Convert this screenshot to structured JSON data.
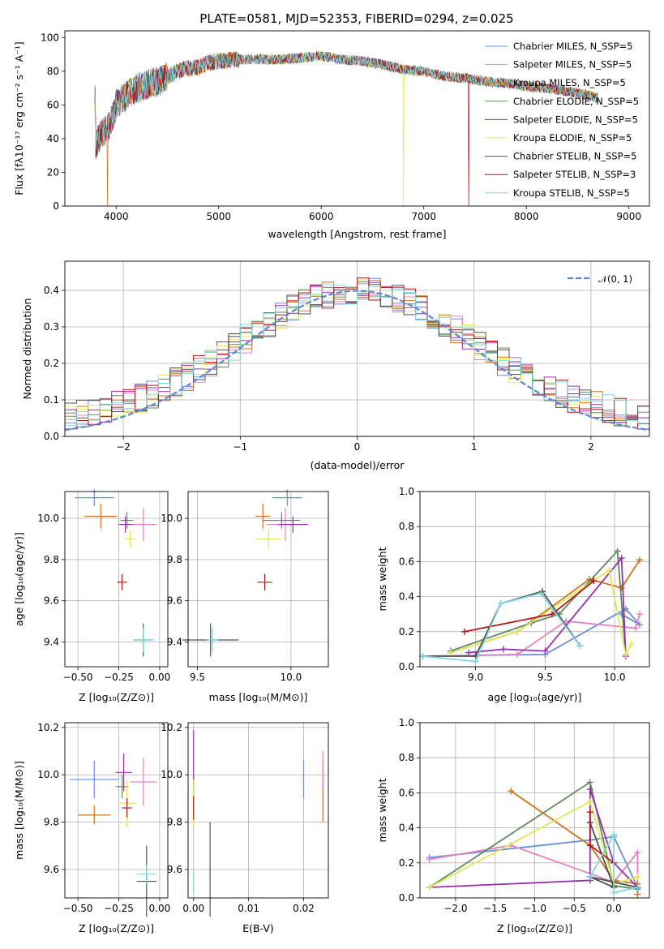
{
  "chart_data": [
    {
      "id": "spectrum",
      "type": "line",
      "title": "PLATE=0581, MJD=52353, FIBERID=0294, z=0.025",
      "xlabel": "wavelength [Angstrom, rest frame]",
      "ylabel": "Flux [fλ10⁻¹⁷ erg cm⁻² s⁻¹ A⁻¹]",
      "xlim": [
        3500,
        9200
      ],
      "ylim": [
        0,
        104
      ],
      "xticks": [
        "4000",
        "5000",
        "6000",
        "7000",
        "8000",
        "9000"
      ],
      "yticks": [
        "0",
        "20",
        "40",
        "60",
        "80",
        "100"
      ],
      "legend_position": "top-right",
      "continuum": {
        "x": [
          3800,
          3850,
          3900,
          3950,
          4000,
          4100,
          4200,
          4300,
          4400,
          4500,
          4600,
          4700,
          4800,
          4900,
          5000,
          5200,
          5400,
          5600,
          5800,
          6000,
          6200,
          6400,
          6600,
          6800,
          7000,
          7200,
          7400,
          7600,
          7800,
          8000,
          8200,
          8400,
          8600,
          8700
        ],
        "y": [
          36,
          42,
          46,
          50,
          60,
          66,
          70,
          72,
          74,
          77,
          80,
          82,
          82,
          85,
          86,
          87,
          87,
          87,
          88,
          89,
          87,
          86,
          84,
          81,
          80,
          77,
          76,
          74,
          73,
          71,
          70,
          68,
          66,
          64
        ]
      },
      "series": [
        {
          "name": "Chabrier MILES, N_SSP=5",
          "color": "#6b8fd8"
        },
        {
          "name": "Salpeter MILES, N_SSP=5",
          "color": "#e681c6"
        },
        {
          "name": "Kroupa MILES, N_SSP=5",
          "color": "#d1741e"
        },
        {
          "name": "Chabrier ELODIE, N_SSP=5",
          "color": "#5f8a5c"
        },
        {
          "name": "Salpeter ELODIE, N_SSP=5",
          "color": "#9a2fae"
        },
        {
          "name": "Kroupa ELODIE, N_SSP=5",
          "color": "#e0e85a"
        },
        {
          "name": "Chabrier STELIB, N_SSP=5",
          "color": "#505050"
        },
        {
          "name": "Salpeter STELIB, N_SSP=3",
          "color": "#b01818"
        },
        {
          "name": "Kroupa STELIB, N_SSP=5",
          "color": "#7fd6df"
        }
      ]
    },
    {
      "id": "residuals",
      "type": "line",
      "xlabel": "(data-model)/error",
      "ylabel": "Normed distribution",
      "xlim": [
        -2.5,
        2.5
      ],
      "ylim": [
        0,
        0.48
      ],
      "xticks": [
        "−2",
        "−1",
        "0",
        "1",
        "2"
      ],
      "yticks": [
        "0.0",
        "0.1",
        "0.2",
        "0.3",
        "0.4"
      ],
      "grid": true,
      "legend": "𝒩(0, 1)",
      "legend_position": "top-right",
      "gaussian": {
        "mean": 0,
        "sigma": 1
      },
      "bin_width": 0.1,
      "series_colors": [
        "#6b8fd8",
        "#e681c6",
        "#d1741e",
        "#5f8a5c",
        "#9a2fae",
        "#e0e85a",
        "#505050",
        "#b01818",
        "#7fd6df"
      ]
    },
    {
      "id": "age_vs_Z",
      "type": "scatter",
      "xlabel": "Z [log₁₀(Z/Z⊙)]",
      "ylabel": "age  [log₁₀(age/yr)]",
      "xlim": [
        -0.58,
        0.05
      ],
      "ylim": [
        9.28,
        10.13
      ],
      "xticks": [
        [
          "−0.50",
          -0.5
        ],
        [
          "−0.25",
          -0.25
        ],
        [
          "0.00",
          0
        ]
      ],
      "yticks": [
        [
          "9.4",
          9.4
        ],
        [
          "9.6",
          9.6
        ],
        [
          "9.8",
          9.8
        ],
        [
          "10.0",
          10.0
        ]
      ],
      "points": [
        {
          "c": "#6b8fd8",
          "x": -0.4,
          "y": 10.1,
          "xe": 0.12,
          "ye": 0.04
        },
        {
          "c": "#d1741e",
          "x": -0.36,
          "y": 10.01,
          "xe": 0.1,
          "ye": 0.06
        },
        {
          "c": "#e681c6",
          "x": -0.1,
          "y": 9.97,
          "xe": 0.08,
          "ye": 0.08
        },
        {
          "c": "#5f8a5c",
          "x": -0.2,
          "y": 9.99,
          "xe": 0.04,
          "ye": 0.04
        },
        {
          "c": "#9a2fae",
          "x": -0.21,
          "y": 9.97,
          "xe": 0.04,
          "ye": 0.04
        },
        {
          "c": "#e0e85a",
          "x": -0.18,
          "y": 9.9,
          "xe": 0.03,
          "ye": 0.04
        },
        {
          "c": "#b01818",
          "x": -0.23,
          "y": 9.69,
          "xe": 0.03,
          "ye": 0.04
        },
        {
          "c": "#505050",
          "x": -0.1,
          "y": 9.41,
          "xe": 0.06,
          "ye": 0.08
        },
        {
          "c": "#7fd6df",
          "x": -0.1,
          "y": 9.41,
          "xe": 0.06,
          "ye": 0.06
        }
      ]
    },
    {
      "id": "age_vs_mass",
      "type": "scatter",
      "xlabel": "mass [log₁₀(M/M⊙)]",
      "ylabel": "",
      "xlim": [
        9.45,
        10.2
      ],
      "ylim": [
        9.28,
        10.13
      ],
      "xticks": [
        [
          "9.5",
          9.5
        ],
        [
          "10.0",
          10.0
        ]
      ],
      "yticks": [
        [
          "9.4",
          9.4
        ],
        [
          "9.6",
          9.6
        ],
        [
          "9.8",
          9.8
        ],
        [
          "10.0",
          10.0
        ]
      ],
      "points": [
        {
          "c": "#6b8fd8",
          "x": 9.98,
          "y": 10.1,
          "xe": 0.08,
          "ye": 0.04
        },
        {
          "c": "#d1741e",
          "x": 9.85,
          "y": 10.01,
          "xe": 0.04,
          "ye": 0.06
        },
        {
          "c": "#e681c6",
          "x": 9.97,
          "y": 9.97,
          "xe": 0.1,
          "ye": 0.08
        },
        {
          "c": "#5f8a5c",
          "x": 9.95,
          "y": 9.99,
          "xe": 0.1,
          "ye": 0.04
        },
        {
          "c": "#9a2fae",
          "x": 10.01,
          "y": 9.97,
          "xe": 0.08,
          "ye": 0.04
        },
        {
          "c": "#e0e85a",
          "x": 9.88,
          "y": 9.9,
          "xe": 0.07,
          "ye": 0.05
        },
        {
          "c": "#b01818",
          "x": 9.86,
          "y": 9.69,
          "xe": 0.04,
          "ye": 0.04
        },
        {
          "c": "#505050",
          "x": 9.57,
          "y": 9.41,
          "xe": 0.15,
          "ye": 0.08
        },
        {
          "c": "#7fd6df",
          "x": 9.58,
          "y": 9.41,
          "xe": 0.03,
          "ye": 0.06
        }
      ]
    },
    {
      "id": "weight_vs_age",
      "type": "line",
      "xlabel": "age  [log₁₀(age/yr)]",
      "ylabel": "mass weight",
      "xlim": [
        8.6,
        10.25
      ],
      "ylim": [
        0,
        1.0
      ],
      "xticks": [
        [
          "9.0",
          9.0
        ],
        [
          "9.5",
          9.5
        ],
        [
          "10.0",
          10.0
        ]
      ],
      "yticks": [
        [
          "0.0",
          0
        ],
        [
          "0.2",
          0.2
        ],
        [
          "0.4",
          0.4
        ],
        [
          "0.6",
          0.6
        ],
        [
          "0.8",
          0.8
        ],
        [
          "1.0",
          1.0
        ]
      ],
      "grid": true,
      "series": [
        {
          "c": "#6b8fd8",
          "pts": [
            [
              8.62,
              0.06
            ],
            [
              9.5,
              0.07
            ],
            [
              10.08,
              0.33
            ],
            [
              10.18,
              0.24
            ],
            [
              10.05,
              0.3
            ]
          ]
        },
        {
          "c": "#e681c6",
          "pts": [
            [
              8.62,
              0.06
            ],
            [
              9.3,
              0.07
            ],
            [
              9.65,
              0.26
            ],
            [
              10.15,
              0.22
            ],
            [
              10.18,
              0.3
            ]
          ]
        },
        {
          "c": "#d1741e",
          "pts": [
            [
              8.82,
              0.08
            ],
            [
              9.3,
              0.2
            ],
            [
              9.82,
              0.5
            ],
            [
              10.05,
              0.45
            ],
            [
              10.18,
              0.61
            ]
          ]
        },
        {
          "c": "#5f8a5c",
          "pts": [
            [
              8.82,
              0.09
            ],
            [
              9.4,
              0.25
            ],
            [
              9.6,
              0.3
            ],
            [
              10.02,
              0.66
            ],
            [
              10.08,
              0.07
            ]
          ]
        },
        {
          "c": "#9a2fae",
          "pts": [
            [
              8.95,
              0.08
            ],
            [
              9.2,
              0.1
            ],
            [
              9.5,
              0.09
            ],
            [
              10.05,
              0.62
            ],
            [
              10.08,
              0.06
            ]
          ]
        },
        {
          "c": "#e0e85a",
          "pts": [
            [
              8.82,
              0.08
            ],
            [
              9.3,
              0.2
            ],
            [
              9.96,
              0.55
            ],
            [
              10.08,
              0.07
            ],
            [
              10.12,
              0.13
            ]
          ]
        },
        {
          "c": "#505050",
          "pts": [
            [
              8.62,
              0.06
            ],
            [
              9.0,
              0.06
            ],
            [
              9.18,
              0.36
            ],
            [
              9.48,
              0.43
            ],
            [
              9.75,
              0.12
            ]
          ]
        },
        {
          "c": "#b01818",
          "pts": [
            [
              8.92,
              0.2
            ],
            [
              9.55,
              0.3
            ],
            [
              9.85,
              0.49
            ]
          ]
        },
        {
          "c": "#7fd6df",
          "pts": [
            [
              8.62,
              0.06
            ],
            [
              9.0,
              0.03
            ],
            [
              9.18,
              0.36
            ],
            [
              9.47,
              0.42
            ],
            [
              9.75,
              0.12
            ]
          ]
        }
      ]
    },
    {
      "id": "mass_vs_Z",
      "type": "scatter",
      "xlabel": "Z [log₁₀(Z/Z⊙)]",
      "ylabel": "mass [log₁₀(M/M⊙)]",
      "xlim": [
        -0.58,
        0.05
      ],
      "ylim": [
        9.48,
        10.22
      ],
      "xticks": [
        [
          "−0.50",
          -0.5
        ],
        [
          "−0.25",
          -0.25
        ],
        [
          "0.00",
          0
        ]
      ],
      "yticks": [
        [
          "9.6",
          9.6
        ],
        [
          "9.8",
          9.8
        ],
        [
          "10.0",
          10.0
        ],
        [
          "10.2",
          10.2
        ]
      ],
      "points": [
        {
          "c": "#6b8fd8",
          "x": -0.4,
          "y": 9.98,
          "xe": 0.15,
          "ye": 0.08
        },
        {
          "c": "#d1741e",
          "x": -0.4,
          "y": 9.83,
          "xe": 0.1,
          "ye": 0.04
        },
        {
          "c": "#e681c6",
          "x": -0.1,
          "y": 9.97,
          "xe": 0.08,
          "ye": 0.1
        },
        {
          "c": "#5f8a5c",
          "x": -0.23,
          "y": 9.95,
          "xe": 0.04,
          "ye": 0.05
        },
        {
          "c": "#9a2fae",
          "x": -0.22,
          "y": 10.01,
          "xe": 0.05,
          "ye": 0.08
        },
        {
          "c": "#e0e85a",
          "x": -0.2,
          "y": 9.88,
          "xe": 0.05,
          "ye": 0.1
        },
        {
          "c": "#b01818",
          "x": -0.2,
          "y": 9.86,
          "xe": 0.03,
          "ye": 0.04
        },
        {
          "c": "#505050",
          "x": -0.08,
          "y": 9.55,
          "xe": 0.06,
          "ye": 0.15
        },
        {
          "c": "#7fd6df",
          "x": -0.08,
          "y": 9.58,
          "xe": 0.06,
          "ye": 0.04
        }
      ]
    },
    {
      "id": "mass_vs_EBV",
      "type": "scatter",
      "xlabel": "E(B-V)",
      "ylabel": "",
      "xlim": [
        -0.001,
        0.0245
      ],
      "ylim": [
        9.48,
        10.22
      ],
      "xticks": [
        [
          "0.00",
          0
        ],
        [
          "0.01",
          0.01
        ],
        [
          "0.02",
          0.02
        ]
      ],
      "yticks": [
        [
          "9.6",
          9.6
        ],
        [
          "9.8",
          9.8
        ],
        [
          "10.0",
          10.0
        ],
        [
          "10.2",
          10.2
        ]
      ],
      "points": [
        {
          "c": "#6b8fd8",
          "x": 0.02,
          "y": 9.98,
          "xe": 0,
          "ye": 0.08
        },
        {
          "c": "#d1741e",
          "x": 0.0235,
          "y": 9.92,
          "xe": 0,
          "ye": 0.12
        },
        {
          "c": "#e681c6",
          "x": 0.0235,
          "y": 10.02,
          "xe": 0,
          "ye": 0.08
        },
        {
          "c": "#5f8a5c",
          "x": 0,
          "y": 9.95,
          "xe": 0,
          "ye": 0.05
        },
        {
          "c": "#9a2fae",
          "x": 0,
          "y": 10.02,
          "xe": 0,
          "ye": 0.17
        },
        {
          "c": "#e0e85a",
          "x": 0,
          "y": 9.88,
          "xe": 0,
          "ye": 0.1
        },
        {
          "c": "#b01818",
          "x": 0,
          "y": 9.86,
          "xe": 0,
          "ye": 0.05
        },
        {
          "c": "#505050",
          "x": 0.003,
          "y": 9.6,
          "xe": 0,
          "ye": 0.2
        },
        {
          "c": "#7fd6df",
          "x": 0,
          "y": 9.55,
          "xe": 0,
          "ye": 0.05
        }
      ]
    },
    {
      "id": "weight_vs_Z",
      "type": "line",
      "xlabel": "Z [log₁₀(Z/Z⊙)]",
      "ylabel": "mass weight",
      "xlim": [
        -2.45,
        0.45
      ],
      "ylim": [
        0,
        1.0
      ],
      "xticks": [
        [
          "−2.0",
          -2
        ],
        [
          "−1.5",
          -1.5
        ],
        [
          "−1.0",
          -1
        ],
        [
          "−0.5",
          -0.5
        ],
        [
          "0.0",
          0
        ]
      ],
      "yticks": [
        [
          "0.0",
          0
        ],
        [
          "0.2",
          0.2
        ],
        [
          "0.4",
          0.4
        ],
        [
          "0.6",
          0.6
        ],
        [
          "0.8",
          0.8
        ],
        [
          "1.0",
          1.0
        ]
      ],
      "grid": true,
      "series": [
        {
          "c": "#6b8fd8",
          "pts": [
            [
              -2.33,
              0.23
            ],
            [
              -0.3,
              0.33
            ],
            [
              0.0,
              0.35
            ],
            [
              0.3,
              0.06
            ],
            [
              -0.3,
              0.12
            ]
          ]
        },
        {
          "c": "#e681c6",
          "pts": [
            [
              -2.33,
              0.22
            ],
            [
              -1.3,
              0.3
            ],
            [
              0.0,
              0.09
            ],
            [
              0.3,
              0.26
            ],
            [
              0.3,
              0.06
            ]
          ]
        },
        {
          "c": "#d1741e",
          "pts": [
            [
              -1.3,
              0.61
            ],
            [
              -0.3,
              0.3
            ],
            [
              0.0,
              0.1
            ],
            [
              0.3,
              0.08
            ],
            [
              0.3,
              0.02
            ]
          ]
        },
        {
          "c": "#5f8a5c",
          "pts": [
            [
              -2.33,
              0.06
            ],
            [
              -0.3,
              0.66
            ],
            [
              0.0,
              0.07
            ],
            [
              0.3,
              0.05
            ]
          ]
        },
        {
          "c": "#9a2fae",
          "pts": [
            [
              -2.33,
              0.06
            ],
            [
              -0.3,
              0.1
            ],
            [
              -0.3,
              0.62
            ],
            [
              0.0,
              0.2
            ],
            [
              0.3,
              0.06
            ]
          ]
        },
        {
          "c": "#e0e85a",
          "pts": [
            [
              -2.33,
              0.06
            ],
            [
              -0.3,
              0.55
            ],
            [
              0.0,
              0.08
            ],
            [
              0.3,
              0.12
            ]
          ]
        },
        {
          "c": "#505050",
          "pts": [
            [
              -0.3,
              0.43
            ],
            [
              0.0,
              0.06
            ],
            [
              -0.3,
              0.12
            ],
            [
              0.3,
              0.06
            ]
          ]
        },
        {
          "c": "#b01818",
          "pts": [
            [
              -0.3,
              0.49
            ],
            [
              -0.3,
              0.3
            ],
            [
              0.0,
              0.2
            ]
          ]
        },
        {
          "c": "#7fd6df",
          "pts": [
            [
              -0.3,
              0.12
            ],
            [
              0.0,
              0.36
            ],
            [
              0.0,
              0.03
            ],
            [
              0.3,
              0.06
            ]
          ]
        }
      ]
    }
  ]
}
